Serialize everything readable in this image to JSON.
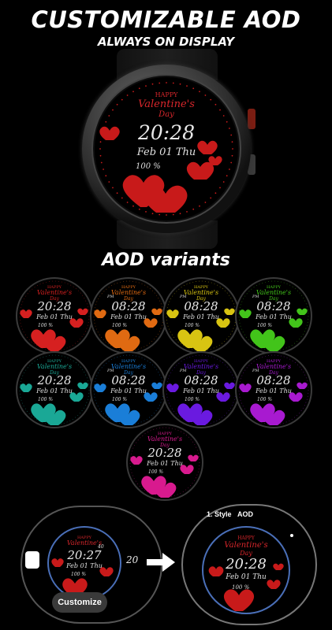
{
  "header": {
    "title": "CUSTOMIZABLE AOD",
    "subtitle": "ALWAYS ON DISPLAY"
  },
  "main_watch": {
    "happy": "HAPPY",
    "valentines": "Valentine's",
    "day": "Day",
    "time": "20:28",
    "date": "Feb 01 Thu",
    "battery": "100",
    "battery_unit": "%",
    "accent": "#d8262b"
  },
  "variants_title": "AOD variants",
  "variants": [
    {
      "time": "20:28",
      "date": "Feb 01 Thu",
      "battery": "100 %",
      "happy": "HAPPY",
      "valentines": "Valentine's",
      "day": "Day",
      "pm": "",
      "color": "#d62020"
    },
    {
      "time": "08:28",
      "date": "Feb 01 Thu",
      "battery": "100 %",
      "happy": "HAPPY",
      "valentines": "Valentine's",
      "day": "Day",
      "pm": "PM",
      "color": "#e06a12"
    },
    {
      "time": "08:28",
      "date": "Feb 01 Thu",
      "battery": "100 %",
      "happy": "HAPPY",
      "valentines": "Valentine's",
      "day": "Day",
      "pm": "PM",
      "color": "#d8c412"
    },
    {
      "time": "08:28",
      "date": "Feb 01 Thu",
      "battery": "100 %",
      "happy": "HAPPY",
      "valentines": "Valentine's",
      "day": "Day",
      "pm": "PM",
      "color": "#42c41a"
    },
    {
      "time": "20:28",
      "date": "Feb 01 Thu",
      "battery": "100 %",
      "happy": "HAPPY",
      "valentines": "Valentine's",
      "day": "Day",
      "pm": "",
      "color": "#1aa896"
    },
    {
      "time": "08:28",
      "date": "Feb 01 Thu",
      "battery": "100 %",
      "happy": "HAPPY",
      "valentines": "Valentine's",
      "day": "Day",
      "pm": "PM",
      "color": "#1a7ed8"
    },
    {
      "time": "08:28",
      "date": "Feb 01 Thu",
      "battery": "100 %",
      "happy": "HAPPY",
      "valentines": "Valentine's",
      "day": "Day",
      "pm": "PM",
      "color": "#6a1ae0"
    },
    {
      "time": "08:28",
      "date": "Feb 01 Thu",
      "battery": "100 %",
      "happy": "HAPPY",
      "valentines": "Valentine's",
      "day": "Day",
      "pm": "PM",
      "color": "#a81ad0"
    },
    {
      "time": "20:28",
      "date": "Feb 01 Thu",
      "battery": "100 %",
      "happy": "HAPPY",
      "valentines": "Valentine's",
      "day": "Day",
      "pm": "",
      "color": "#d81a8e"
    }
  ],
  "customize": {
    "preview_time": "20:27",
    "preview_date": "Feb 01 Thu",
    "preview_battery": "100 %",
    "preview_side_num": "40",
    "partial_time": "20",
    "button_label": "Customize",
    "style_label": "1. Style",
    "aod_label": "AOD",
    "large_time": "20:28",
    "large_date": "Feb 01 Thu",
    "large_battery": "100 %",
    "happy": "HAPPY",
    "valentines": "Valentine's",
    "day": "Day",
    "ring_color": "#4a6fb8"
  }
}
